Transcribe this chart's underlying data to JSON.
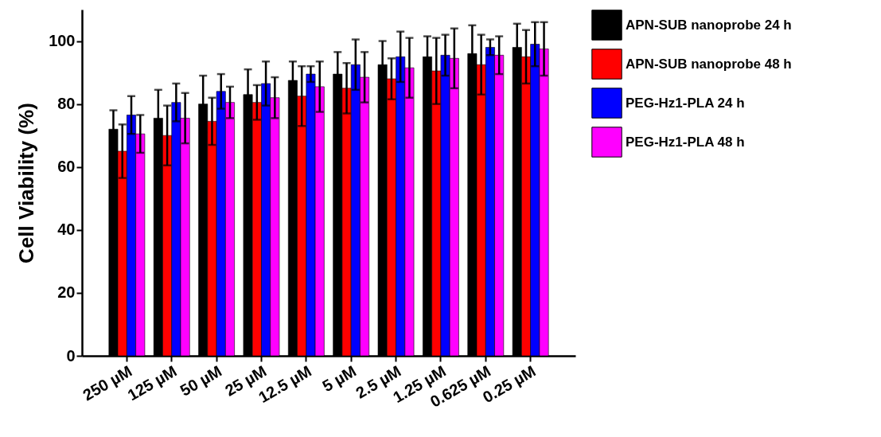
{
  "chart_data": {
    "type": "bar",
    "ylabel": "Cell Viability (%)",
    "categories": [
      "250 µM",
      "125 µM",
      "50 µM",
      "25 µM",
      "12.5 µM",
      "5 µM",
      "2.5 µM",
      "1.25 µM",
      "0.625 µM",
      "0.25 µM"
    ],
    "series": [
      {
        "name": "APN-SUB nanoprobe 24 h",
        "color": "#000000",
        "values": [
          72,
          75.5,
          80,
          83,
          87.5,
          89.5,
          92.5,
          95,
          96,
          98
        ],
        "errors": [
          6,
          9,
          9,
          8,
          6,
          7,
          7.5,
          6.5,
          9,
          7.5
        ]
      },
      {
        "name": "APN-SUB nanoprobe 48 h",
        "color": "#ff0000",
        "values": [
          65,
          70,
          74.5,
          80.5,
          82.5,
          85,
          88,
          90.5,
          92.5,
          95
        ],
        "errors": [
          8.5,
          9.5,
          7.5,
          5.5,
          9.5,
          8,
          6.5,
          10.5,
          9.5,
          8.5
        ]
      },
      {
        "name": "PEG-Hz1-PLA 24 h",
        "color": "#0000ff",
        "values": [
          76.5,
          80.5,
          84,
          86.5,
          89.5,
          92.5,
          95,
          95.5,
          98,
          99
        ],
        "errors": [
          6,
          6,
          5.5,
          7,
          2.5,
          8,
          8,
          6.5,
          2.5,
          7
        ]
      },
      {
        "name": "PEG-Hz1-PLA 48 h",
        "color": "#ff00ff",
        "values": [
          70.5,
          75.5,
          80.5,
          82,
          85.5,
          88.5,
          91.5,
          94.5,
          95.5,
          97.5
        ],
        "errors": [
          6,
          8,
          5,
          6.5,
          8,
          8,
          9.5,
          9.5,
          6,
          8.5
        ]
      }
    ],
    "ylim": [
      0,
      110
    ],
    "yticks": [
      0,
      20,
      40,
      60,
      80,
      100
    ],
    "legend": "right"
  }
}
